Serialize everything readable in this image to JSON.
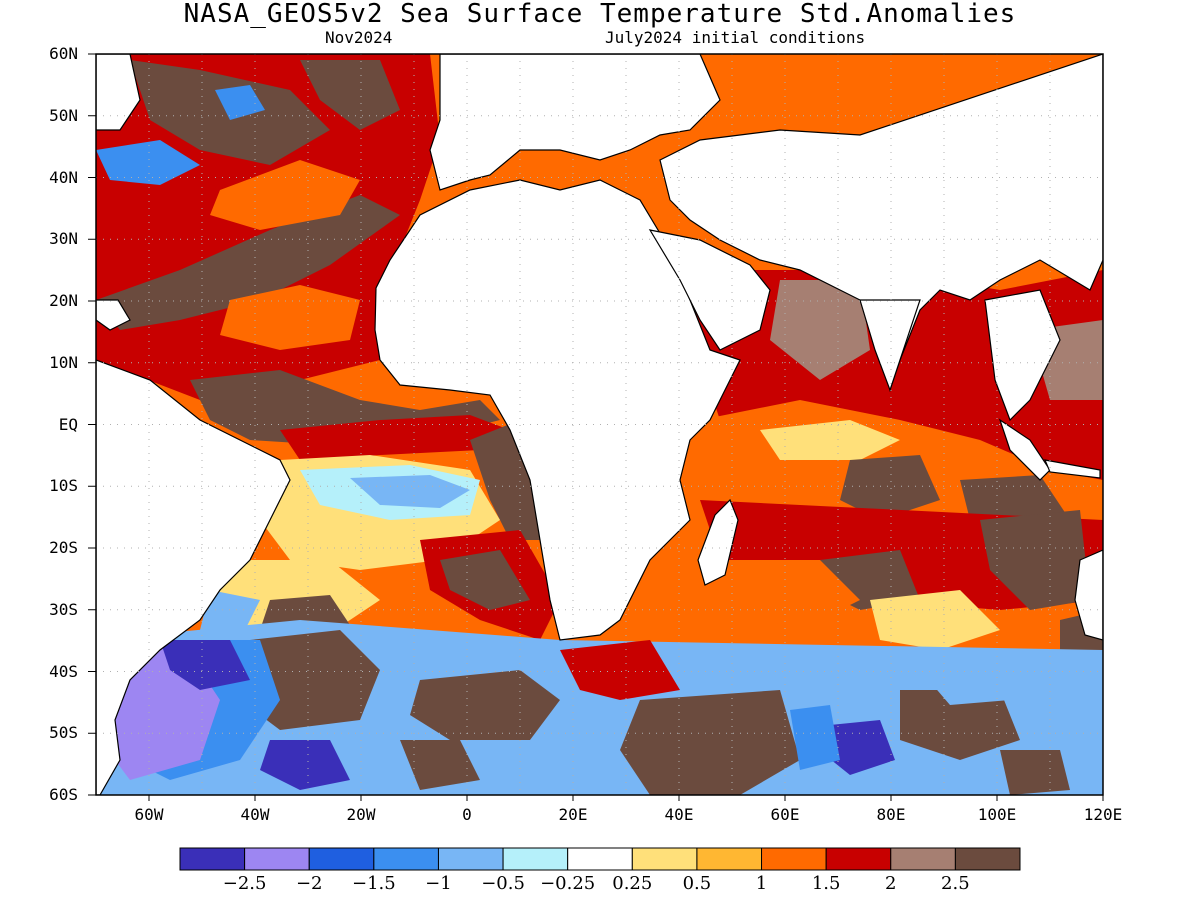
{
  "title": "NASA_GEOS5v2 Sea Surface Temperature Std.Anomalies",
  "subtitle_left": "Nov2024",
  "subtitle_right": "July2024 initial conditions",
  "lat_labels": [
    "60N",
    "50N",
    "40N",
    "30N",
    "20N",
    "10N",
    "EQ",
    "10S",
    "20S",
    "30S",
    "40S",
    "50S",
    "60S"
  ],
  "lon_labels": [
    "60W",
    "40W",
    "20W",
    "0",
    "20E",
    "40E",
    "60E",
    "80E",
    "100E",
    "120E"
  ],
  "colorbar": {
    "colors": [
      "#3a2fb8",
      "#9d86f2",
      "#1f5fe0",
      "#3b8ff0",
      "#78b6f5",
      "#b5f0fa",
      "#ffffff",
      "#ffe07a",
      "#ffb732",
      "#ff6a00",
      "#c80000",
      "#a67f72",
      "#6b4b3e"
    ],
    "labels": [
      "−2.5",
      "−2",
      "−1.5",
      "−1",
      "−0.5",
      "−0.25",
      "0.25",
      "0.5",
      "1",
      "1.5",
      "2",
      "2.5"
    ]
  },
  "map_colors": {
    "land": "#ffffff",
    "coast": "#000000",
    "grid": "#b0b0b0"
  },
  "regions": [
    {
      "name": "north-atlantic-subtropical-brown",
      "cat": 12
    },
    {
      "name": "north-atlantic-red",
      "cat": 10
    },
    {
      "name": "north-atlantic-orange",
      "cat": 9
    },
    {
      "name": "equatorial-atlantic-brown",
      "cat": 12
    },
    {
      "name": "south-atlantic-light-blue",
      "cat": 4
    },
    {
      "name": "south-atlantic-pale-cyan",
      "cat": 5
    },
    {
      "name": "south-atlantic-yellow",
      "cat": 7
    },
    {
      "name": "benguela-brown",
      "cat": 12
    },
    {
      "name": "indian-ocean-orange",
      "cat": 9
    },
    {
      "name": "indian-ocean-red",
      "cat": 10
    },
    {
      "name": "bay-of-bengal-red",
      "cat": 10
    },
    {
      "name": "arabian-sea-brown",
      "cat": 11
    },
    {
      "name": "south-indian-brown",
      "cat": 12
    },
    {
      "name": "southern-ocean-brown",
      "cat": 12
    },
    {
      "name": "southern-ocean-blue",
      "cat": 3
    },
    {
      "name": "argentine-purple",
      "cat": 0
    },
    {
      "name": "argentine-lavender",
      "cat": 1
    },
    {
      "name": "southern-ocean-dark-purple",
      "cat": 0
    },
    {
      "name": "southern-ocean-light-blue",
      "cat": 4
    }
  ]
}
